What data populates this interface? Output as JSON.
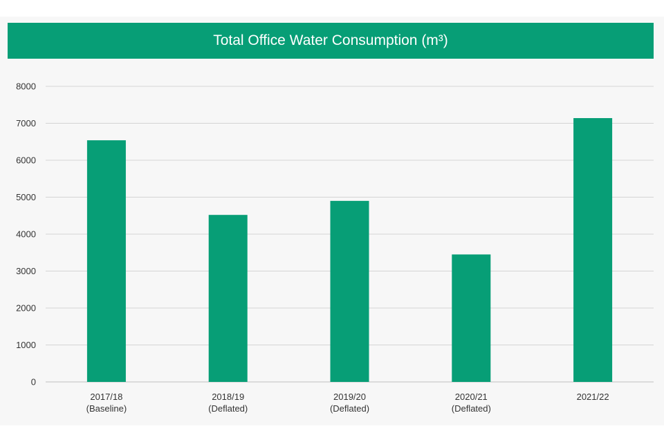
{
  "chart_data": {
    "type": "bar",
    "title": "Total Office Water Consumption (m³)",
    "categories": [
      [
        "2017/18",
        "(Baseline)"
      ],
      [
        "2018/19",
        "(Deflated)"
      ],
      [
        "2019/20",
        "(Deflated)"
      ],
      [
        "2020/21",
        "(Deflated)"
      ],
      [
        "2021/22"
      ]
    ],
    "values": [
      6540,
      4520,
      4900,
      3450,
      7140
    ],
    "ylim": [
      0,
      8000
    ],
    "yticks": [
      0,
      1000,
      2000,
      3000,
      4000,
      5000,
      6000,
      7000,
      8000
    ],
    "xlabel": "",
    "ylabel": "",
    "grid": true,
    "bar_color": "#079e76",
    "grid_color": "#d4d4d4"
  }
}
